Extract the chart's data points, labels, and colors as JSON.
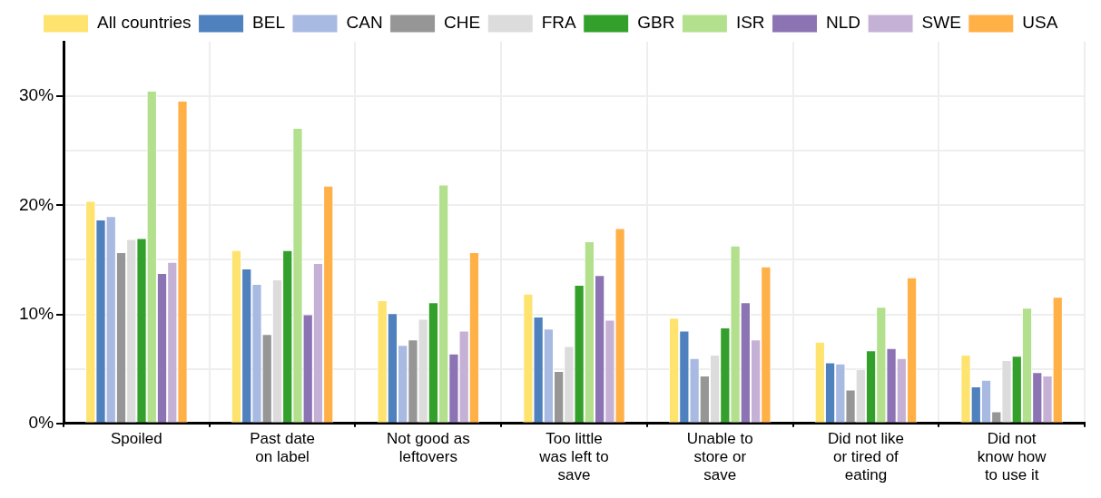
{
  "chart_data": {
    "type": "bar",
    "categories": [
      "Spoiled",
      "Past date on label",
      "Not good as leftovers",
      "Too little was left to save",
      "Unable to store or save",
      "Did not like or tired of eating",
      "Did not know how to use it"
    ],
    "series": [
      {
        "name": "All countries",
        "color": "#fee36e",
        "values": [
          20.4,
          15.9,
          11.3,
          11.9,
          9.7,
          7.5,
          6.3
        ]
      },
      {
        "name": "BEL",
        "color": "#4e81bd",
        "values": [
          18.7,
          14.2,
          10.1,
          9.8,
          8.5,
          5.6,
          3.4
        ]
      },
      {
        "name": "CAN",
        "color": "#a8b9e2",
        "values": [
          19.0,
          12.8,
          7.2,
          8.7,
          6.0,
          5.5,
          4.0
        ]
      },
      {
        "name": "CHE",
        "color": "#969696",
        "values": [
          15.7,
          8.2,
          7.7,
          4.8,
          4.4,
          3.1,
          1.1
        ]
      },
      {
        "name": "FRA",
        "color": "#dcdcdc",
        "values": [
          16.9,
          13.2,
          9.6,
          7.1,
          6.3,
          5.0,
          5.8
        ]
      },
      {
        "name": "GBR",
        "color": "#34a02c",
        "values": [
          17.0,
          15.9,
          11.1,
          12.7,
          8.8,
          6.7,
          6.2
        ]
      },
      {
        "name": "ISR",
        "color": "#b3e08c",
        "values": [
          30.5,
          27.1,
          21.9,
          16.7,
          16.3,
          10.7,
          10.6
        ]
      },
      {
        "name": "NLD",
        "color": "#8c74b4",
        "values": [
          13.8,
          10.0,
          6.4,
          13.6,
          11.1,
          6.9,
          4.7
        ]
      },
      {
        "name": "SWE",
        "color": "#c6b1d6",
        "values": [
          14.8,
          14.7,
          8.5,
          9.5,
          7.7,
          6.0,
          4.4
        ]
      },
      {
        "name": "USA",
        "color": "#ffb047",
        "values": [
          29.6,
          21.8,
          15.7,
          17.9,
          14.4,
          13.4,
          11.6
        ]
      }
    ],
    "ylim": [
      0,
      35
    ],
    "yticks": [
      {
        "value": 0,
        "label": "0%"
      },
      {
        "value": 5,
        "label": null
      },
      {
        "value": 10,
        "label": "10%"
      },
      {
        "value": 15,
        "label": null
      },
      {
        "value": 20,
        "label": "20%"
      },
      {
        "value": 25,
        "label": null
      },
      {
        "value": 30,
        "label": "30%"
      }
    ],
    "grid": true,
    "legend": "top"
  }
}
